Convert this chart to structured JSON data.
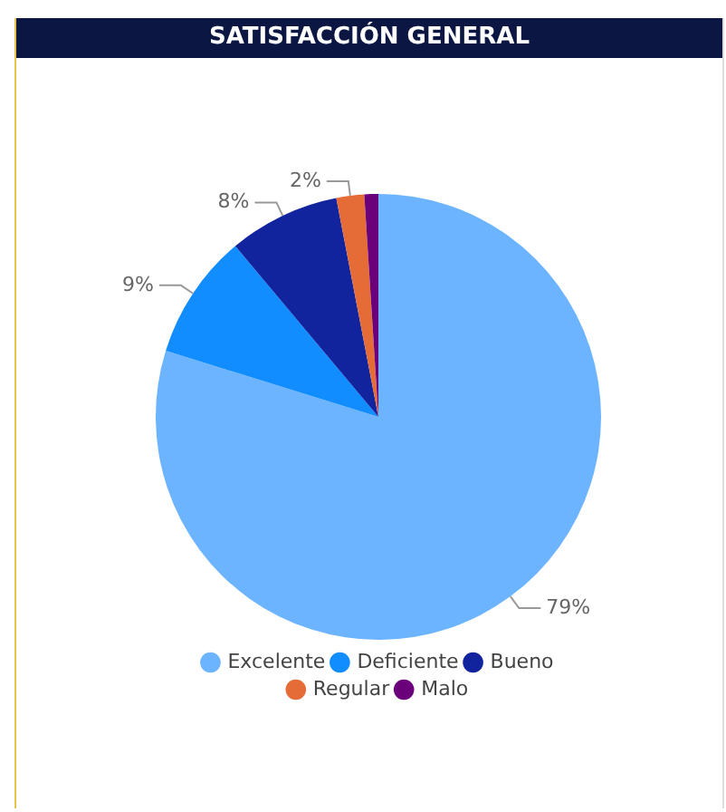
{
  "chart_data": {
    "type": "pie",
    "title": "SATISFACCIÓN GENERAL",
    "categories": [
      "Excelente",
      "Deficiente",
      "Bueno",
      "Regular",
      "Malo"
    ],
    "values": [
      79,
      9,
      8,
      2,
      1
    ],
    "value_labels": [
      "79%",
      "9%",
      "8%",
      "2%",
      null
    ],
    "colors": [
      "#6cb4ff",
      "#118dff",
      "#12239e",
      "#e66c37",
      "#6b007b"
    ],
    "legend": "bottom"
  }
}
